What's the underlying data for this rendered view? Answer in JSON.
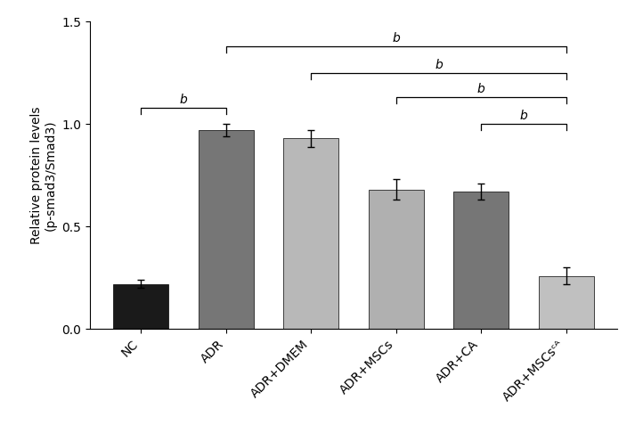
{
  "chart_data": {
    "type": "bar",
    "categories": [
      "NC",
      "ADR",
      "ADR+DMEM",
      "ADR+MSCs",
      "ADR+CA",
      "ADR+MSCsᶜᴬ"
    ],
    "values": [
      0.22,
      0.97,
      0.93,
      0.68,
      0.67,
      0.26
    ],
    "errors": [
      0.02,
      0.03,
      0.04,
      0.05,
      0.04,
      0.04
    ],
    "colors": [
      "#1a1a1a",
      "#767676",
      "#b8b8b8",
      "#b0b0b0",
      "#767676",
      "#c0c0c0"
    ],
    "y_label": "Relative protein levels\n(p-smad3/Smad3)",
    "ylim": [
      0.0,
      1.5
    ],
    "yticks": [
      0.0,
      0.5,
      1.0,
      1.5
    ],
    "brackets": [
      {
        "x1": 0,
        "x2": 1,
        "y": 1.08,
        "label": "b"
      },
      {
        "x1": 1,
        "x2": 5,
        "y": 1.38,
        "label": "b"
      },
      {
        "x1": 2,
        "x2": 5,
        "y": 1.25,
        "label": "b"
      },
      {
        "x1": 3,
        "x2": 5,
        "y": 1.13,
        "label": "b"
      },
      {
        "x1": 4,
        "x2": 5,
        "y": 1.0,
        "label": "b"
      }
    ],
    "grid": false
  }
}
